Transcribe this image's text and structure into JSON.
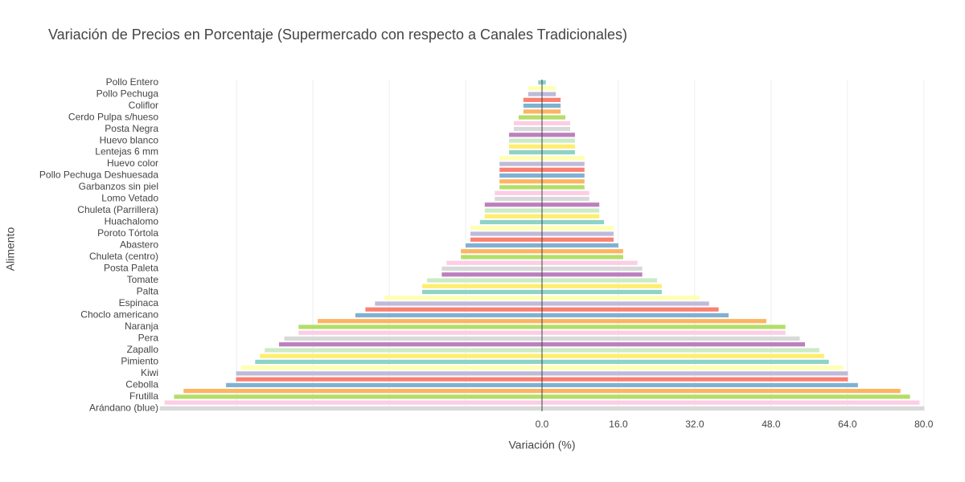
{
  "chart_data": {
    "type": "mirror-bar",
    "title": "Variación de Precios en Porcentaje (Supermercado con respecto a Canales Tradicionales)",
    "x_label": "Variación (%)",
    "y_label": "Alimento",
    "categories": [
      "Pollo Entero",
      null,
      "Pollo Pechuga",
      null,
      "Coliflor",
      null,
      "Cerdo Pulpa s/hueso",
      null,
      "Posta Negra",
      null,
      "Huevo blanco",
      null,
      "Lentejas 6 mm",
      null,
      "Huevo color",
      null,
      "Pollo Pechuga Deshuesada",
      null,
      "Garbanzos sin piel",
      null,
      "Lomo Vetado",
      null,
      "Chuleta (Parrillera)",
      null,
      "Huachalomo",
      null,
      "Poroto Tórtola",
      null,
      "Abastero",
      null,
      "Chuleta (centro)",
      null,
      "Posta Paleta",
      null,
      "Tomate",
      null,
      "Palta",
      null,
      "Espinaca",
      null,
      "Choclo americano",
      null,
      "Naranja",
      null,
      "Pera",
      null,
      "Zapallo",
      null,
      "Pimiento",
      null,
      "Kiwi",
      null,
      "Cebolla",
      null,
      "Frutilla",
      null,
      "Arándano (blue)"
    ],
    "values": [
      0.8,
      2.9,
      2.9,
      3.9,
      3.9,
      3.9,
      4.9,
      5.9,
      5.9,
      6.9,
      6.9,
      6.9,
      6.9,
      8.9,
      8.9,
      8.9,
      8.9,
      8.9,
      8.9,
      9.9,
      9.9,
      12.0,
      12.0,
      12.0,
      13.0,
      15.0,
      15.0,
      15.0,
      16.0,
      17.0,
      17.0,
      20.0,
      21.0,
      21.0,
      24.1,
      25.1,
      25.1,
      33.0,
      35.0,
      37.0,
      39.1,
      47.0,
      51.0,
      51.0,
      54.0,
      55.1,
      58.1,
      59.1,
      60.1,
      63.1,
      64.1,
      64.1,
      66.2,
      75.1,
      77.1,
      79.1,
      80.1
    ],
    "palette": [
      "#8dd3c7",
      "#ffffb3",
      "#bebada",
      "#fb8072",
      "#80b1d3",
      "#fdb462",
      "#b3de69",
      "#fccde5",
      "#d9d9d9",
      "#bc80bd",
      "#ccebc5",
      "#ffed6f"
    ],
    "xlim": [
      -80.2,
      80.2
    ],
    "xticks": [
      {
        "value": 0,
        "label": "0.0"
      },
      {
        "value": 16,
        "label": "16.0"
      },
      {
        "value": 32,
        "label": "32.0"
      },
      {
        "value": 48,
        "label": "48.0"
      },
      {
        "value": 64,
        "label": "64.0"
      },
      {
        "value": 80,
        "label": "80.0"
      }
    ],
    "xgrid": [
      -64,
      -48,
      -32,
      -16
    ],
    "grid": true
  }
}
